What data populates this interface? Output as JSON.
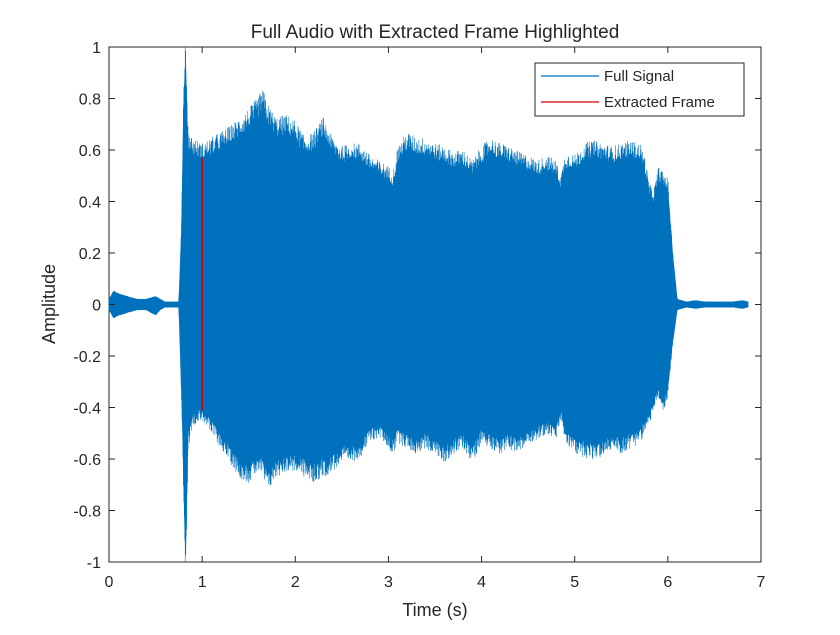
{
  "chart_data": {
    "type": "line",
    "title": "Full Audio with Extracted Frame Highlighted",
    "xlabel": "Time (s)",
    "ylabel": "Amplitude",
    "xlim": [
      0,
      7
    ],
    "ylim": [
      -1,
      1
    ],
    "xticks": [
      0,
      1,
      2,
      3,
      4,
      5,
      6,
      7
    ],
    "xtick_labels": [
      "0",
      "1",
      "2",
      "3",
      "4",
      "5",
      "6",
      "7"
    ],
    "yticks": [
      -1,
      -0.8,
      -0.6,
      -0.4,
      -0.2,
      0,
      0.2,
      0.4,
      0.6,
      0.8,
      1
    ],
    "ytick_labels": [
      "-1",
      "-0.8",
      "-0.6",
      "-0.4",
      "-0.2",
      "0",
      "0.2",
      "0.4",
      "0.6",
      "0.8",
      "1"
    ],
    "grid": false,
    "legend_position": "top-right",
    "series": [
      {
        "name": "Full Signal",
        "color": "#0072BD",
        "duration": 6.86,
        "envelope": {
          "t": [
            0.0,
            0.05,
            0.1,
            0.2,
            0.3,
            0.4,
            0.5,
            0.55,
            0.6,
            0.75,
            0.78,
            0.8,
            0.82,
            0.85,
            0.9,
            1.0,
            1.1,
            1.2,
            1.3,
            1.4,
            1.5,
            1.6,
            1.65,
            1.7,
            1.8,
            1.9,
            2.0,
            2.1,
            2.2,
            2.3,
            2.4,
            2.5,
            2.6,
            2.7,
            2.8,
            2.9,
            3.0,
            3.05,
            3.1,
            3.2,
            3.3,
            3.4,
            3.5,
            3.6,
            3.7,
            3.8,
            3.9,
            4.0,
            4.1,
            4.2,
            4.3,
            4.4,
            4.5,
            4.6,
            4.7,
            4.8,
            4.85,
            4.9,
            5.0,
            5.1,
            5.2,
            5.3,
            5.4,
            5.5,
            5.6,
            5.7,
            5.75,
            5.8,
            5.85,
            5.9,
            5.95,
            6.0,
            6.05,
            6.1,
            6.2,
            6.3,
            6.4,
            6.5,
            6.6,
            6.7,
            6.8,
            6.86
          ],
          "upper": [
            0.02,
            0.05,
            0.04,
            0.03,
            0.02,
            0.02,
            0.03,
            0.02,
            0.01,
            0.01,
            0.3,
            0.75,
            0.96,
            0.6,
            0.58,
            0.56,
            0.58,
            0.6,
            0.62,
            0.65,
            0.68,
            0.72,
            0.75,
            0.7,
            0.65,
            0.66,
            0.64,
            0.58,
            0.6,
            0.65,
            0.58,
            0.55,
            0.56,
            0.56,
            0.52,
            0.5,
            0.48,
            0.46,
            0.55,
            0.6,
            0.58,
            0.58,
            0.56,
            0.55,
            0.53,
            0.54,
            0.5,
            0.55,
            0.58,
            0.56,
            0.55,
            0.53,
            0.52,
            0.5,
            0.52,
            0.5,
            0.45,
            0.53,
            0.52,
            0.56,
            0.57,
            0.56,
            0.55,
            0.56,
            0.57,
            0.56,
            0.52,
            0.42,
            0.4,
            0.48,
            0.46,
            0.44,
            0.2,
            0.02,
            0.01,
            0.015,
            0.01,
            0.01,
            0.01,
            0.01,
            0.015,
            0.01
          ],
          "lower": [
            -0.02,
            -0.05,
            -0.04,
            -0.03,
            -0.02,
            -0.02,
            -0.04,
            -0.02,
            -0.01,
            -0.01,
            -0.35,
            -0.65,
            -1.0,
            -0.5,
            -0.42,
            -0.4,
            -0.45,
            -0.5,
            -0.55,
            -0.6,
            -0.62,
            -0.58,
            -0.6,
            -0.65,
            -0.6,
            -0.58,
            -0.58,
            -0.6,
            -0.62,
            -0.6,
            -0.58,
            -0.55,
            -0.55,
            -0.53,
            -0.48,
            -0.46,
            -0.5,
            -0.52,
            -0.48,
            -0.5,
            -0.52,
            -0.5,
            -0.52,
            -0.55,
            -0.52,
            -0.5,
            -0.55,
            -0.48,
            -0.5,
            -0.52,
            -0.5,
            -0.52,
            -0.48,
            -0.47,
            -0.45,
            -0.47,
            -0.4,
            -0.48,
            -0.52,
            -0.53,
            -0.54,
            -0.53,
            -0.5,
            -0.52,
            -0.5,
            -0.48,
            -0.45,
            -0.42,
            -0.36,
            -0.33,
            -0.38,
            -0.32,
            -0.15,
            -0.02,
            -0.01,
            -0.015,
            -0.01,
            -0.01,
            -0.01,
            -0.01,
            -0.015,
            -0.01
          ]
        }
      },
      {
        "name": "Extracted Frame",
        "color": "#D00000",
        "x": [
          1.0,
          1.0
        ],
        "y": [
          -0.41,
          0.57
        ]
      }
    ]
  }
}
